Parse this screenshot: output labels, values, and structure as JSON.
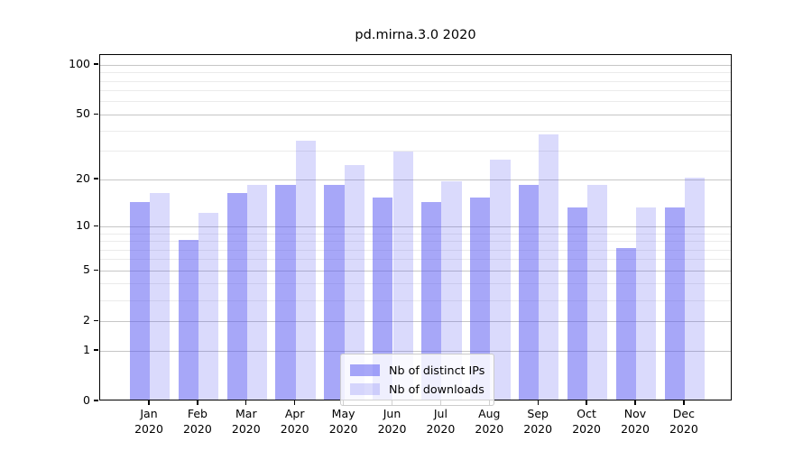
{
  "title": "pd.mirna.3.0 2020",
  "chart_data": {
    "type": "bar",
    "title": "pd.mirna.3.0 2020",
    "categories": [
      "Jan",
      "Feb",
      "Mar",
      "Apr",
      "May",
      "Jun",
      "Jul",
      "Aug",
      "Sep",
      "Oct",
      "Nov",
      "Dec"
    ],
    "category_year": "2020",
    "series": [
      {
        "name": "Nb of distinct IPs",
        "color": "rgba(87,87,241,0.52)",
        "values": [
          14,
          8,
          16,
          18,
          18,
          15,
          14,
          15,
          18,
          13,
          7,
          13
        ]
      },
      {
        "name": "Nb of downloads",
        "color": "rgba(87,87,241,0.22)",
        "values": [
          16,
          12,
          18,
          34,
          24,
          29,
          19,
          26,
          37,
          18,
          13,
          20
        ]
      }
    ],
    "yscale": "log1p",
    "ytick_values": [
      0,
      1,
      2,
      5,
      10,
      20,
      50,
      100
    ],
    "yminor_values": [
      3,
      4,
      6,
      7,
      8,
      9,
      30,
      40,
      60,
      70,
      80,
      90
    ],
    "ylim": [
      0,
      115
    ],
    "xlabel": "",
    "ylabel": "",
    "grid": true,
    "legend_position": "lower-center"
  }
}
